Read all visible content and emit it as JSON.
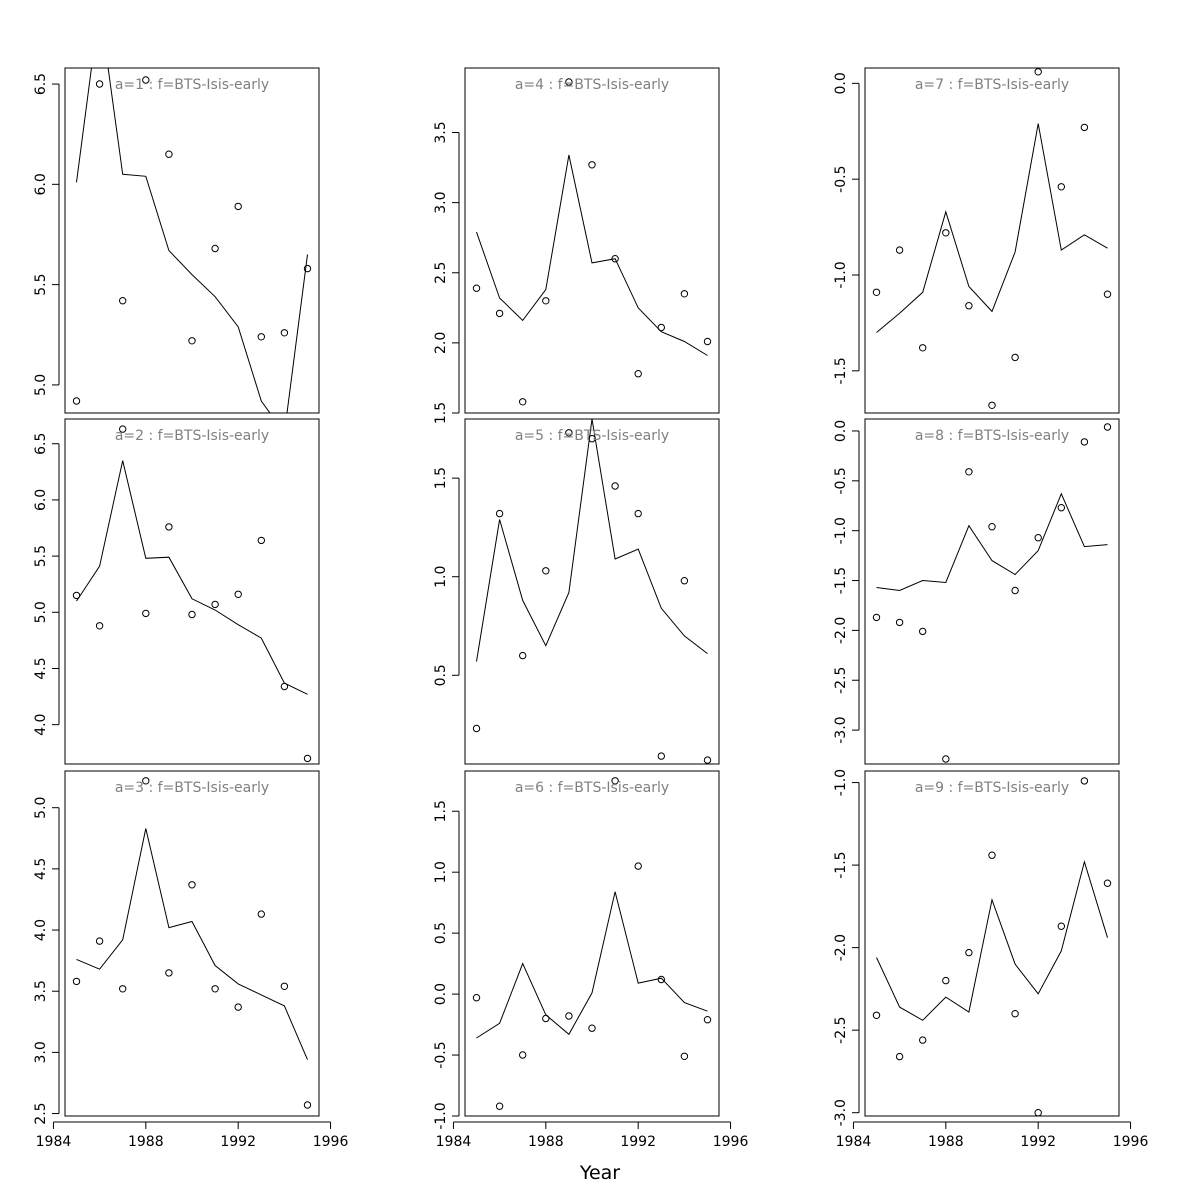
{
  "xlabel": "Year",
  "chart_data": [
    {
      "type": "scatter",
      "title": "a=1  :  f=BTS-Isis-early",
      "x": [
        1985,
        1986,
        1987,
        1988,
        1989,
        1990,
        1991,
        1992,
        1993,
        1994,
        1995
      ],
      "y": [
        4.92,
        6.5,
        5.42,
        6.52,
        6.15,
        5.22,
        5.68,
        5.89,
        5.24,
        5.26,
        5.58
      ],
      "fit": [
        6.01,
        6.89,
        6.05,
        6.04,
        5.67,
        5.55,
        5.44,
        5.29,
        4.92,
        4.76,
        5.65
      ],
      "xlim": [
        1984.5,
        1995.5
      ],
      "ylim": [
        4.86,
        6.58
      ],
      "xticks": [],
      "yticks": [
        5.0,
        5.5,
        6.0,
        6.5
      ]
    },
    {
      "type": "scatter",
      "title": "a=4  :  f=BTS-Isis-early",
      "x": [
        1985,
        1986,
        1987,
        1988,
        1989,
        1990,
        1991,
        1992,
        1993,
        1994,
        1995
      ],
      "y": [
        2.39,
        2.21,
        1.58,
        2.3,
        3.86,
        3.27,
        2.6,
        1.78,
        2.11,
        2.35,
        2.01
      ],
      "fit": [
        2.79,
        2.32,
        2.16,
        2.38,
        3.34,
        2.57,
        2.6,
        2.25,
        2.08,
        2.01,
        1.91
      ],
      "xlim": [
        1984.5,
        1995.5
      ],
      "ylim": [
        1.5,
        3.96
      ],
      "xticks": [],
      "yticks": [
        1.5,
        2.0,
        2.5,
        3.0,
        3.5
      ]
    },
    {
      "type": "scatter",
      "title": "a=7  :  f=BTS-Isis-early",
      "x": [
        1985,
        1986,
        1987,
        1988,
        1989,
        1990,
        1991,
        1992,
        1993,
        1994,
        1995
      ],
      "y": [
        -1.09,
        -0.87,
        -1.38,
        -0.78,
        -1.16,
        -1.68,
        -1.43,
        0.06,
        -0.54,
        -0.23,
        -1.1
      ],
      "fit": [
        -1.3,
        -1.2,
        -1.09,
        -0.67,
        -1.06,
        -1.19,
        -0.88,
        -0.21,
        -0.87,
        -0.79,
        -0.86
      ],
      "xlim": [
        1984.5,
        1995.5
      ],
      "ylim": [
        -1.72,
        0.08
      ],
      "xticks": [],
      "yticks": [
        -1.5,
        -1.0,
        -0.5,
        0.0
      ]
    },
    {
      "type": "scatter",
      "title": "a=2  :  f=BTS-Isis-early",
      "x": [
        1985,
        1986,
        1987,
        1988,
        1989,
        1990,
        1991,
        1992,
        1993,
        1994,
        1995
      ],
      "y": [
        5.15,
        4.88,
        6.63,
        4.99,
        5.76,
        4.98,
        5.07,
        5.16,
        5.64,
        4.34,
        3.7
      ],
      "fit": [
        5.1,
        5.41,
        6.35,
        5.48,
        5.49,
        5.12,
        5.02,
        4.89,
        4.77,
        4.37,
        4.27
      ],
      "xlim": [
        1984.5,
        1995.5
      ],
      "ylim": [
        3.65,
        6.72
      ],
      "xticks": [],
      "yticks": [
        4.0,
        4.5,
        5.0,
        5.5,
        6.0,
        6.5
      ]
    },
    {
      "type": "scatter",
      "title": "a=5  :  f=BTS-Isis-early",
      "x": [
        1985,
        1986,
        1987,
        1988,
        1989,
        1990,
        1991,
        1992,
        1993,
        1994,
        1995
      ],
      "y": [
        0.23,
        1.32,
        0.6,
        1.03,
        1.73,
        1.7,
        1.46,
        1.32,
        0.09,
        0.98,
        0.07
      ],
      "fit": [
        0.57,
        1.29,
        0.88,
        0.65,
        0.92,
        1.8,
        1.09,
        1.14,
        0.84,
        0.7,
        0.61
      ],
      "xlim": [
        1984.5,
        1995.5
      ],
      "ylim": [
        0.05,
        1.8
      ],
      "xticks": [],
      "yticks": [
        0.5,
        1.0,
        1.5
      ]
    },
    {
      "type": "scatter",
      "title": "a=8  :  f=BTS-Isis-early",
      "x": [
        1985,
        1986,
        1987,
        1988,
        1989,
        1990,
        1991,
        1992,
        1993,
        1994,
        1995
      ],
      "y": [
        -1.87,
        -1.92,
        -2.01,
        -3.29,
        -0.41,
        -0.96,
        -1.6,
        -1.07,
        -0.77,
        -0.11,
        0.04
      ],
      "fit": [
        -1.57,
        -1.6,
        -1.5,
        -1.52,
        -0.95,
        -1.3,
        -1.44,
        -1.2,
        -0.63,
        -1.16,
        -1.14
      ],
      "xlim": [
        1984.5,
        1995.5
      ],
      "ylim": [
        -3.34,
        0.12
      ],
      "xticks": [],
      "yticks": [
        -3.0,
        -2.5,
        -2.0,
        -1.5,
        -1.0,
        -0.5,
        0.0
      ]
    },
    {
      "type": "scatter",
      "title": "a=3  :  f=BTS-Isis-early",
      "x": [
        1985,
        1986,
        1987,
        1988,
        1989,
        1990,
        1991,
        1992,
        1993,
        1994,
        1995
      ],
      "y": [
        3.58,
        3.91,
        3.52,
        5.22,
        3.65,
        4.37,
        3.52,
        3.37,
        4.13,
        3.54,
        2.57
      ],
      "fit": [
        3.76,
        3.68,
        3.92,
        4.83,
        4.02,
        4.07,
        3.71,
        3.56,
        3.47,
        3.38,
        2.94
      ],
      "xlim": [
        1984.5,
        1995.5
      ],
      "ylim": [
        2.48,
        5.3
      ],
      "xticks": [
        1984,
        1988,
        1992,
        1996
      ],
      "yticks": [
        2.5,
        3.0,
        3.5,
        4.0,
        4.5,
        5.0
      ]
    },
    {
      "type": "scatter",
      "title": "a=6  :  f=BTS-Isis-early",
      "x": [
        1985,
        1986,
        1987,
        1988,
        1989,
        1990,
        1991,
        1992,
        1993,
        1994,
        1995
      ],
      "y": [
        -0.03,
        -0.92,
        -0.5,
        -0.2,
        -0.18,
        -0.28,
        1.75,
        1.05,
        0.12,
        -0.51,
        -0.21
      ],
      "fit": [
        -0.36,
        -0.24,
        0.25,
        -0.17,
        -0.33,
        0.01,
        0.84,
        0.09,
        0.13,
        -0.07,
        -0.14
      ],
      "xlim": [
        1984.5,
        1995.5
      ],
      "ylim": [
        -1.0,
        1.83
      ],
      "xticks": [
        1984,
        1988,
        1992,
        1996
      ],
      "yticks": [
        -1.0,
        -0.5,
        0.0,
        0.5,
        1.0,
        1.5
      ]
    },
    {
      "type": "scatter",
      "title": "a=9  :  f=BTS-Isis-early",
      "x": [
        1985,
        1986,
        1987,
        1988,
        1989,
        1990,
        1991,
        1992,
        1993,
        1994,
        1995
      ],
      "y": [
        -2.41,
        -2.66,
        -2.56,
        -2.2,
        -2.03,
        -1.44,
        -2.4,
        -3.0,
        -1.87,
        -0.99,
        -1.61
      ],
      "fit": [
        -2.06,
        -2.36,
        -2.44,
        -2.3,
        -2.39,
        -1.71,
        -2.1,
        -2.28,
        -2.02,
        -1.48,
        -1.94
      ],
      "xlim": [
        1984.5,
        1995.5
      ],
      "ylim": [
        -3.02,
        -0.93
      ],
      "xticks": [
        1984,
        1988,
        1992,
        1996
      ],
      "yticks": [
        -3.0,
        -2.5,
        -2.0,
        -1.5,
        -1.0
      ]
    }
  ]
}
